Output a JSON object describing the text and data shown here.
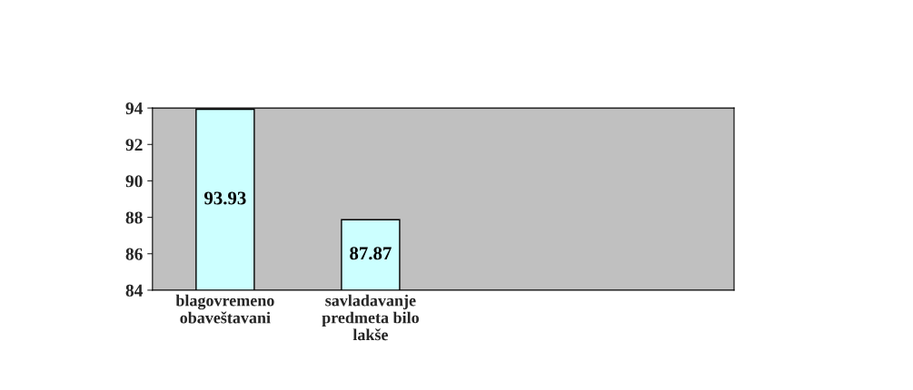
{
  "chart_data": {
    "type": "bar",
    "categories": [
      "blagovremeno obaveštavani",
      "savladavanje predmeta bilo lakše",
      null,
      null
    ],
    "values": [
      93.93,
      87.87,
      null,
      null
    ],
    "color": "#ccffff",
    "ylim": [
      84,
      94
    ],
    "yticks": [
      84,
      86,
      88,
      90,
      92,
      94
    ],
    "data_labels": true,
    "grid": false,
    "legend": false
  }
}
